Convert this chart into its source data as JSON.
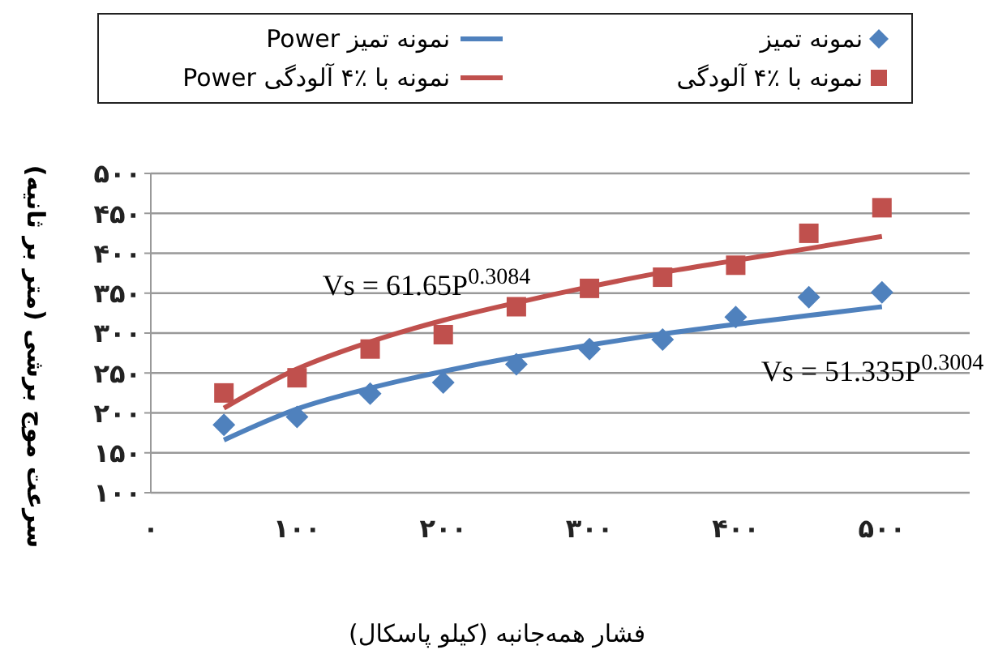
{
  "chart_data": {
    "type": "scatter",
    "xlabel": "فشار همه‌جانبه (کیلو پاسکال)",
    "ylabel": "سرعت موج برشی (متر بر ثانیه)",
    "xlim": [
      0,
      560
    ],
    "xticks": [
      {
        "value": 0,
        "label": "۰"
      },
      {
        "value": 100,
        "label": "۱۰۰"
      },
      {
        "value": 200,
        "label": "۲۰۰"
      },
      {
        "value": 300,
        "label": "۳۰۰"
      },
      {
        "value": 400,
        "label": "۴۰۰"
      },
      {
        "value": 500,
        "label": "۵۰۰"
      }
    ],
    "ylim": [
      100,
      500
    ],
    "yticks": [
      {
        "value": 100,
        "label": "۱۰۰"
      },
      {
        "value": 150,
        "label": "۱۵۰"
      },
      {
        "value": 200,
        "label": "۲۰۰"
      },
      {
        "value": 250,
        "label": "۲۵۰"
      },
      {
        "value": 300,
        "label": "۳۰۰"
      },
      {
        "value": 350,
        "label": "۳۵۰"
      },
      {
        "value": 400,
        "label": "۴۰۰"
      },
      {
        "value": 450,
        "label": "۴۵۰"
      },
      {
        "value": 500,
        "label": "۵۰۰"
      }
    ],
    "grid": "y",
    "legend": "top",
    "series": [
      {
        "name": "نمونه تمیز",
        "type": "scatter",
        "marker": "diamond",
        "color": "#4f81bd",
        "x": [
          50,
          100,
          150,
          200,
          250,
          300,
          350,
          400,
          450,
          500
        ],
        "values": [
          185,
          195,
          224,
          238,
          261,
          280,
          292,
          320,
          345,
          351
        ]
      },
      {
        "name": "نمونه تمیز Power",
        "type": "line",
        "color": "#4f81bd",
        "x": [
          50,
          100,
          150,
          200,
          250,
          300,
          350,
          400,
          450,
          500
        ],
        "values": [
          166,
          205,
          231,
          252,
          270,
          285,
          299,
          311,
          322,
          333
        ]
      },
      {
        "name": "نمونه با ٪۴ آلودگی",
        "type": "scatter",
        "marker": "square",
        "color": "#c0504d",
        "x": [
          50,
          100,
          150,
          200,
          250,
          300,
          350,
          400,
          450,
          500
        ],
        "values": [
          225,
          244,
          280,
          298,
          333,
          356,
          370,
          385,
          425,
          457
        ]
      },
      {
        "name": "نمونه با ٪۴ آلودگی Power",
        "type": "line",
        "color": "#c0504d",
        "x": [
          50,
          100,
          150,
          200,
          250,
          300,
          350,
          400,
          450,
          500
        ],
        "values": [
          206,
          255,
          289,
          316,
          338,
          358,
          376,
          391,
          406,
          421
        ]
      }
    ],
    "annotations": [
      "Vs = 61.65P$^{0.3084}$",
      "Vs = 51.335P$^{0.3004}$"
    ]
  }
}
